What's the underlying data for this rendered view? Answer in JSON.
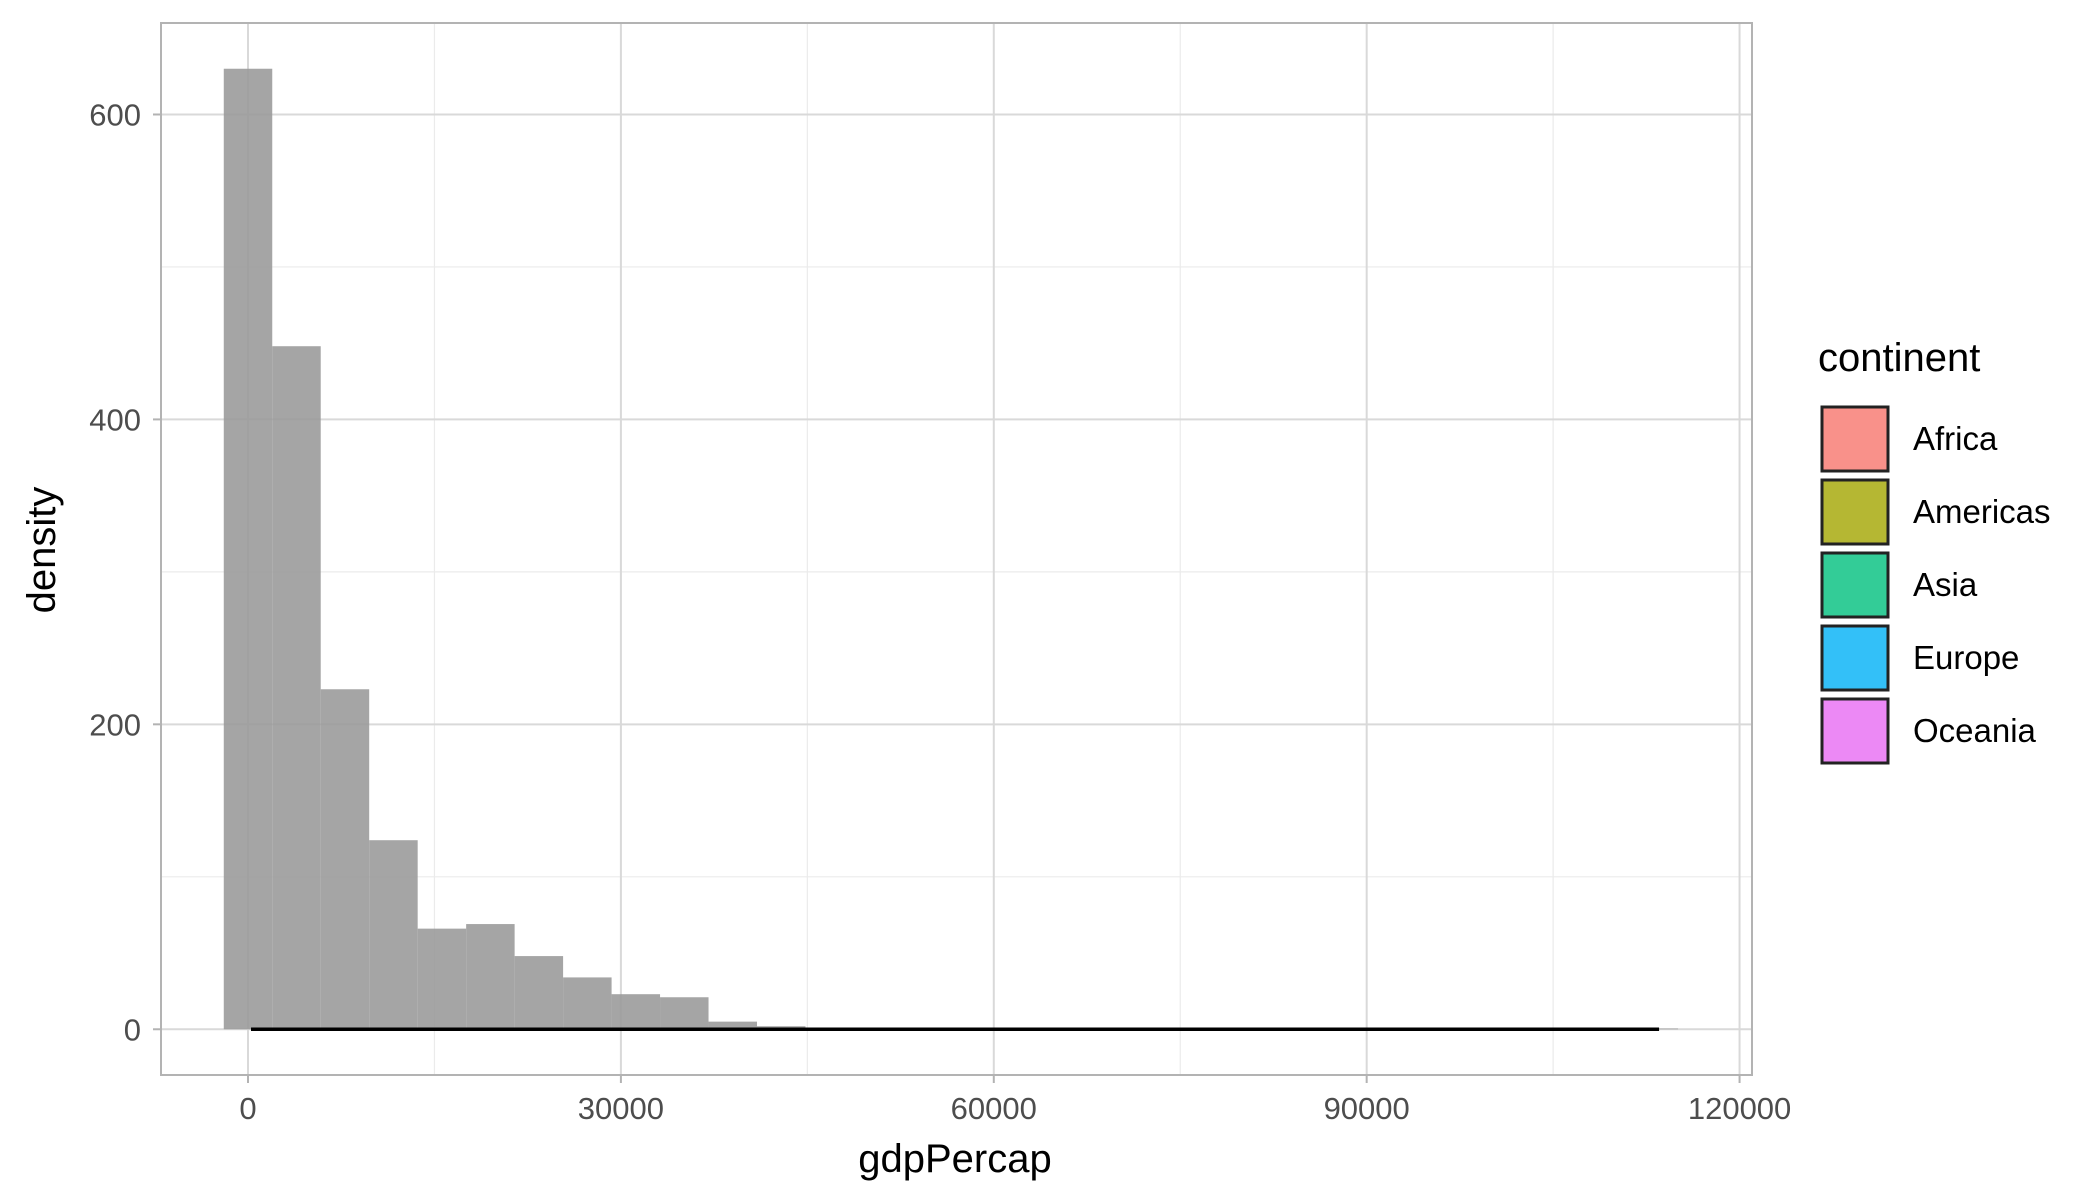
{
  "chart_data": {
    "type": "bar",
    "subtype": "histogram",
    "title": "",
    "xlabel": "gdpPercap",
    "ylabel": "density",
    "xlim": [
      -7000,
      121000
    ],
    "ylim": [
      -30,
      660
    ],
    "x_ticks": [
      0,
      30000,
      60000,
      90000,
      120000
    ],
    "x_tick_labels": [
      "0",
      "30000",
      "60000",
      "90000",
      "120000"
    ],
    "x_minor_ticks": [
      15000,
      45000,
      75000,
      105000
    ],
    "y_ticks": [
      0,
      200,
      400,
      600
    ],
    "y_tick_labels": [
      "0",
      "200",
      "400",
      "600"
    ],
    "y_minor_ticks": [
      100,
      300,
      500
    ],
    "grid": true,
    "bin_width": 3900,
    "bar_color": "#999999",
    "bar_opacity": 0.88,
    "bins": [
      {
        "start": -1950,
        "value": 630
      },
      {
        "start": 1950,
        "value": 448
      },
      {
        "start": 5850,
        "value": 223
      },
      {
        "start": 9750,
        "value": 124
      },
      {
        "start": 13650,
        "value": 66
      },
      {
        "start": 17550,
        "value": 69
      },
      {
        "start": 21450,
        "value": 48
      },
      {
        "start": 25350,
        "value": 34
      },
      {
        "start": 29250,
        "value": 23
      },
      {
        "start": 33150,
        "value": 21
      },
      {
        "start": 37050,
        "value": 5
      },
      {
        "start": 40950,
        "value": 2
      },
      {
        "start": 44850,
        "value": 1
      },
      {
        "start": 48750,
        "value": 0.5
      },
      {
        "start": 52650,
        "value": 0.5
      },
      {
        "start": 56550,
        "value": 0.5
      },
      {
        "start": 60450,
        "value": 0.5
      },
      {
        "start": 64350,
        "value": 0.5
      },
      {
        "start": 68250,
        "value": 0.5
      },
      {
        "start": 72150,
        "value": 0.5
      },
      {
        "start": 76050,
        "value": 0.5
      },
      {
        "start": 79950,
        "value": 0.5
      },
      {
        "start": 83850,
        "value": 0.5
      },
      {
        "start": 87750,
        "value": 0.5
      },
      {
        "start": 91650,
        "value": 0.5
      },
      {
        "start": 95550,
        "value": 0.5
      },
      {
        "start": 99450,
        "value": 0.5
      },
      {
        "start": 103350,
        "value": 0.5
      },
      {
        "start": 107250,
        "value": 1
      },
      {
        "start": 111150,
        "value": 0.5
      }
    ],
    "density_line": {
      "x": [
        241,
        113523
      ],
      "y": [
        0,
        0
      ],
      "color": "#000000"
    },
    "legend": {
      "title": "continent",
      "position": "right",
      "items": [
        {
          "label": "Africa",
          "color": "#F8766D"
        },
        {
          "label": "Americas",
          "color": "#A3A500"
        },
        {
          "label": "Asia",
          "color": "#00BF7D"
        },
        {
          "label": "Europe",
          "color": "#00B0F6"
        },
        {
          "label": "Oceania",
          "color": "#E76BF3"
        }
      ]
    }
  }
}
